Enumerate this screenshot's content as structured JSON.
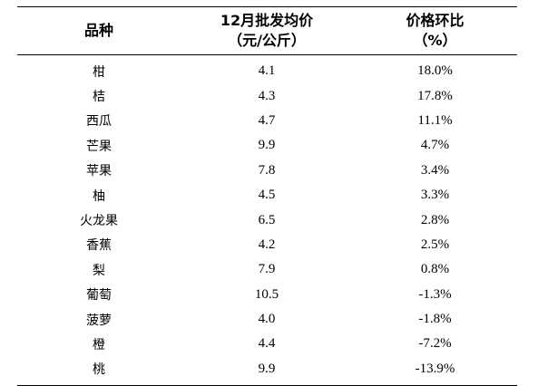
{
  "table": {
    "headers": {
      "variety": "品种",
      "price_line1": "12月批发均价",
      "price_line2": "（元/公斤）",
      "change_line1": "价格环比",
      "change_line2": "（%）"
    },
    "rows": [
      {
        "variety": "柑",
        "price": "4.1",
        "change": "18.0%"
      },
      {
        "variety": "桔",
        "price": "4.3",
        "change": "17.8%"
      },
      {
        "variety": "西瓜",
        "price": "4.7",
        "change": "11.1%"
      },
      {
        "variety": "芒果",
        "price": "9.9",
        "change": "4.7%"
      },
      {
        "variety": "苹果",
        "price": "7.8",
        "change": "3.4%"
      },
      {
        "variety": "柚",
        "price": "4.5",
        "change": "3.3%"
      },
      {
        "variety": "火龙果",
        "price": "6.5",
        "change": "2.8%"
      },
      {
        "variety": "香蕉",
        "price": "4.2",
        "change": "2.5%"
      },
      {
        "variety": "梨",
        "price": "7.9",
        "change": "0.8%"
      },
      {
        "variety": "葡萄",
        "price": "10.5",
        "change": "-1.3%"
      },
      {
        "variety": "菠萝",
        "price": "4.0",
        "change": "-1.8%"
      },
      {
        "variety": "橙",
        "price": "4.4",
        "change": "-7.2%"
      },
      {
        "variety": "桃",
        "price": "9.9",
        "change": "-13.9%"
      }
    ]
  }
}
